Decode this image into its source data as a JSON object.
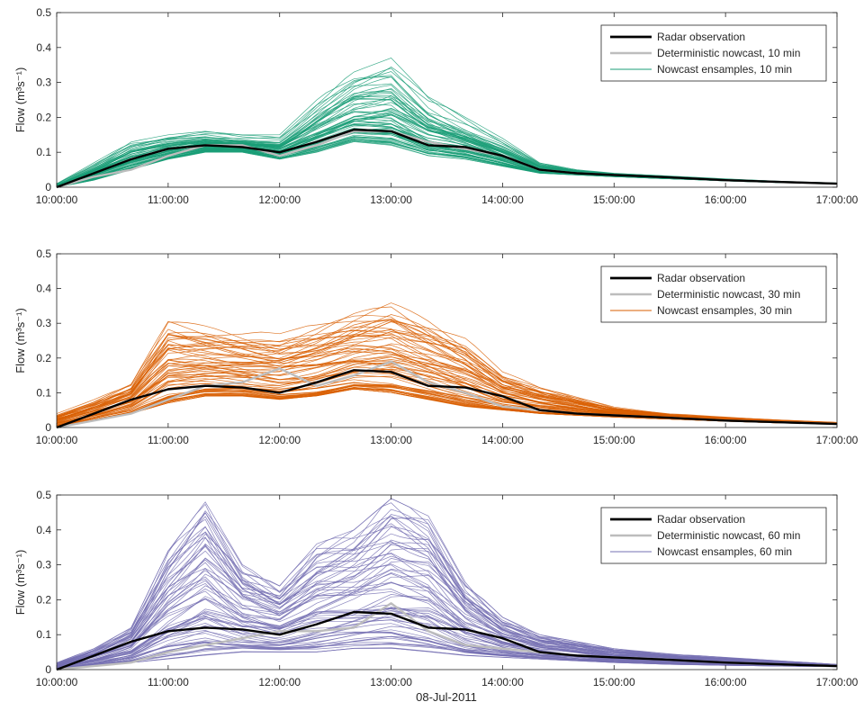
{
  "figure": {
    "shared_xlabel": "08-Jul-2011"
  },
  "chart_data": [
    {
      "type": "line",
      "title": "",
      "xlabel": "",
      "ylabel": "Flow (m³s⁻¹)",
      "ylim": [
        0,
        0.5
      ],
      "yticks": [
        "0",
        "0.1",
        "0.2",
        "0.3",
        "0.4",
        "0.5"
      ],
      "xlim": [
        "10:00:00",
        "17:00:00"
      ],
      "xticks": [
        "10:00:00",
        "11:00:00",
        "12:00:00",
        "13:00:00",
        "14:00:00",
        "15:00:00",
        "16:00:00",
        "17:00:00"
      ],
      "legend_position": "top-right",
      "ensemble_color": "#1a9e77",
      "legend": [
        {
          "label": "Radar observation",
          "color": "#000000"
        },
        {
          "label": "Deterministic nowcast, 10 min",
          "color": "#bdbdbd"
        },
        {
          "label": "Nowcast ensamples, 10 min",
          "color": "#1a9e77"
        }
      ],
      "x": [
        "10:00",
        "10:20",
        "10:40",
        "11:00",
        "11:20",
        "11:40",
        "12:00",
        "12:20",
        "12:40",
        "13:00",
        "13:20",
        "13:40",
        "14:00",
        "14:20",
        "14:40",
        "15:00",
        "15:30",
        "16:00",
        "16:30",
        "17:00"
      ],
      "series": [
        {
          "name": "Radar observation",
          "color": "#000000",
          "values": [
            0.0,
            0.04,
            0.08,
            0.11,
            0.12,
            0.115,
            0.1,
            0.13,
            0.165,
            0.16,
            0.12,
            0.115,
            0.09,
            0.05,
            0.04,
            0.035,
            0.028,
            0.02,
            0.015,
            0.01
          ]
        },
        {
          "name": "Deterministic nowcast, 10 min",
          "color": "#bdbdbd",
          "values": [
            0.0,
            0.03,
            0.05,
            0.09,
            0.12,
            0.12,
            0.09,
            0.12,
            0.16,
            0.16,
            0.13,
            0.11,
            0.09,
            0.05,
            0.04,
            0.035,
            0.028,
            0.02,
            0.015,
            0.01
          ]
        }
      ],
      "ensemble": {
        "name": "Nowcast ensamples, 10 min",
        "lower": [
          0.0,
          0.02,
          0.05,
          0.08,
          0.1,
          0.1,
          0.08,
          0.1,
          0.13,
          0.12,
          0.09,
          0.08,
          0.06,
          0.04,
          0.035,
          0.03,
          0.024,
          0.018,
          0.013,
          0.01
        ],
        "upper": [
          0.01,
          0.07,
          0.13,
          0.15,
          0.16,
          0.15,
          0.15,
          0.25,
          0.33,
          0.37,
          0.26,
          0.2,
          0.14,
          0.07,
          0.05,
          0.04,
          0.032,
          0.024,
          0.017,
          0.012
        ]
      }
    },
    {
      "type": "line",
      "title": "",
      "xlabel": "",
      "ylabel": "Flow (m³s⁻¹)",
      "ylim": [
        0,
        0.5
      ],
      "yticks": [
        "0",
        "0.1",
        "0.2",
        "0.3",
        "0.4",
        "0.5"
      ],
      "xlim": [
        "10:00:00",
        "17:00:00"
      ],
      "xticks": [
        "10:00:00",
        "11:00:00",
        "12:00:00",
        "13:00:00",
        "14:00:00",
        "15:00:00",
        "16:00:00",
        "17:00:00"
      ],
      "legend_position": "top-right",
      "ensemble_color": "#d95f02",
      "legend": [
        {
          "label": "Radar observation",
          "color": "#000000"
        },
        {
          "label": "Deterministic nowcast, 30 min",
          "color": "#bdbdbd"
        },
        {
          "label": "Nowcast ensamples, 30 min",
          "color": "#d95f02"
        }
      ],
      "x": [
        "10:00",
        "10:20",
        "10:40",
        "11:00",
        "11:20",
        "11:40",
        "12:00",
        "12:20",
        "12:40",
        "13:00",
        "13:20",
        "13:40",
        "14:00",
        "14:20",
        "14:40",
        "15:00",
        "15:30",
        "16:00",
        "16:30",
        "17:00"
      ],
      "series": [
        {
          "name": "Radar observation",
          "color": "#000000",
          "values": [
            0.0,
            0.04,
            0.08,
            0.11,
            0.12,
            0.115,
            0.1,
            0.13,
            0.165,
            0.16,
            0.12,
            0.115,
            0.09,
            0.05,
            0.04,
            0.035,
            0.028,
            0.02,
            0.015,
            0.01
          ]
        },
        {
          "name": "Deterministic nowcast, 30 min",
          "color": "#bdbdbd",
          "values": [
            0.0,
            0.02,
            0.04,
            0.08,
            0.12,
            0.13,
            0.17,
            0.12,
            0.15,
            0.19,
            0.13,
            0.1,
            0.06,
            0.05,
            0.04,
            0.035,
            0.028,
            0.02,
            0.015,
            0.01
          ]
        }
      ],
      "ensemble": {
        "name": "Nowcast ensamples, 30 min",
        "lower": [
          0.0,
          0.02,
          0.04,
          0.07,
          0.09,
          0.09,
          0.08,
          0.09,
          0.11,
          0.1,
          0.08,
          0.06,
          0.05,
          0.04,
          0.035,
          0.03,
          0.024,
          0.018,
          0.013,
          0.01
        ],
        "upper": [
          0.04,
          0.08,
          0.13,
          0.32,
          0.3,
          0.28,
          0.27,
          0.3,
          0.34,
          0.37,
          0.32,
          0.26,
          0.16,
          0.12,
          0.09,
          0.06,
          0.04,
          0.03,
          0.022,
          0.015
        ]
      }
    },
    {
      "type": "line",
      "title": "",
      "xlabel": "08-Jul-2011",
      "ylabel": "Flow (m³s⁻¹)",
      "ylim": [
        0,
        0.5
      ],
      "yticks": [
        "0",
        "0.1",
        "0.2",
        "0.3",
        "0.4",
        "0.5"
      ],
      "xlim": [
        "10:00:00",
        "17:00:00"
      ],
      "xticks": [
        "10:00:00",
        "11:00:00",
        "12:00:00",
        "13:00:00",
        "14:00:00",
        "15:00:00",
        "16:00:00",
        "17:00:00"
      ],
      "legend_position": "top-right",
      "ensemble_color": "#7570b3",
      "legend": [
        {
          "label": "Radar observation",
          "color": "#000000"
        },
        {
          "label": "Deterministic nowcast, 60 min",
          "color": "#bdbdbd"
        },
        {
          "label": "Nowcast ensamples, 60 min",
          "color": "#7570b3"
        }
      ],
      "x": [
        "10:00",
        "10:20",
        "10:40",
        "11:00",
        "11:20",
        "11:40",
        "12:00",
        "12:20",
        "12:40",
        "13:00",
        "13:20",
        "13:40",
        "14:00",
        "14:20",
        "14:40",
        "15:00",
        "15:30",
        "16:00",
        "16:30",
        "17:00"
      ],
      "series": [
        {
          "name": "Radar observation",
          "color": "#000000",
          "values": [
            0.0,
            0.04,
            0.08,
            0.11,
            0.12,
            0.115,
            0.1,
            0.13,
            0.165,
            0.16,
            0.12,
            0.115,
            0.09,
            0.05,
            0.04,
            0.035,
            0.028,
            0.02,
            0.015,
            0.01
          ]
        },
        {
          "name": "Deterministic nowcast, 60 min",
          "color": "#bdbdbd",
          "values": [
            0.0,
            0.01,
            0.02,
            0.05,
            0.07,
            0.09,
            0.11,
            0.11,
            0.12,
            0.19,
            0.11,
            0.07,
            0.06,
            0.05,
            0.04,
            0.035,
            0.028,
            0.02,
            0.015,
            0.01
          ]
        }
      ],
      "ensemble": {
        "name": "Nowcast ensamples, 60 min",
        "lower": [
          0.0,
          0.01,
          0.02,
          0.03,
          0.04,
          0.05,
          0.05,
          0.05,
          0.06,
          0.06,
          0.05,
          0.04,
          0.035,
          0.03,
          0.025,
          0.02,
          0.015,
          0.012,
          0.01,
          0.008
        ],
        "upper": [
          0.02,
          0.06,
          0.12,
          0.34,
          0.48,
          0.3,
          0.24,
          0.36,
          0.4,
          0.49,
          0.44,
          0.25,
          0.15,
          0.1,
          0.08,
          0.06,
          0.045,
          0.035,
          0.025,
          0.015
        ]
      }
    }
  ]
}
